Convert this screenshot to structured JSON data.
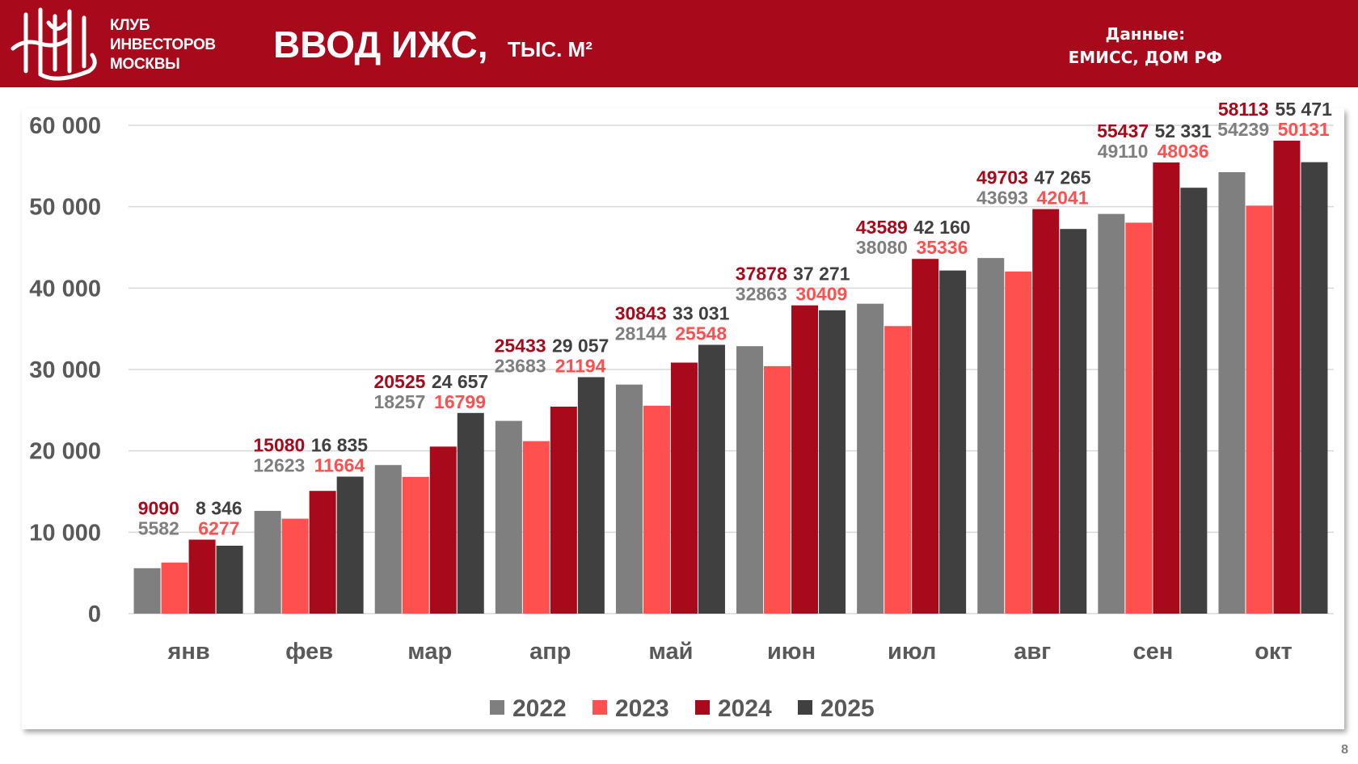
{
  "header": {
    "club_lines": [
      "КЛУБ",
      "ИНВЕСТОРОВ",
      "МОСКВЫ"
    ],
    "title": "ВВОД ИЖС,",
    "subtitle": "ТЫС. М²",
    "source_label": "Данные:",
    "source_value": "ЕМИСС, ДОМ РФ"
  },
  "page_number": "8",
  "chart_data": {
    "type": "bar",
    "title": "",
    "xlabel": "",
    "ylabel": "",
    "ylim": [
      0,
      60000
    ],
    "yticks": [
      0,
      10000,
      20000,
      30000,
      40000,
      50000,
      60000
    ],
    "ytick_labels": [
      "0",
      "10 000",
      "20 000",
      "30 000",
      "40 000",
      "50 000",
      "60 000"
    ],
    "grid": true,
    "legend_position": "bottom",
    "categories": [
      "янв",
      "фев",
      "мар",
      "апр",
      "май",
      "июн",
      "июл",
      "авг",
      "сен",
      "окт"
    ],
    "series": [
      {
        "name": "2022",
        "color": "#7f7f7f",
        "values": [
          5582,
          12623,
          18257,
          23683,
          28144,
          32863,
          38080,
          43693,
          49110,
          54239
        ],
        "labels": [
          "5582",
          "12623",
          "18257",
          "23683",
          "28144",
          "32863",
          "38080",
          "43693",
          "49110",
          "54239"
        ]
      },
      {
        "name": "2023",
        "color": "#ff5050",
        "values": [
          6277,
          11664,
          16799,
          21194,
          25548,
          30409,
          35336,
          42041,
          48036,
          50131
        ],
        "labels": [
          "6277",
          "11664",
          "16799",
          "21194",
          "25548",
          "30409",
          "35336",
          "42041",
          "48036",
          "50131"
        ]
      },
      {
        "name": "2024",
        "color": "#a80a1b",
        "values": [
          9090,
          15080,
          20525,
          25433,
          30843,
          37878,
          43589,
          49703,
          55437,
          58113
        ],
        "labels": [
          "9090",
          "15080",
          "20525",
          "25433",
          "30843",
          "37878",
          "43589",
          "49703",
          "55437",
          "58113"
        ]
      },
      {
        "name": "2025",
        "color": "#404040",
        "values": [
          8346,
          16835,
          24657,
          29057,
          33031,
          37271,
          42160,
          47265,
          52331,
          55471
        ],
        "labels": [
          "8 346",
          "16 835",
          "24 657",
          "29 057",
          "33 031",
          "37 271",
          "42 160",
          "47 265",
          "52 331",
          "55 471"
        ]
      }
    ]
  }
}
